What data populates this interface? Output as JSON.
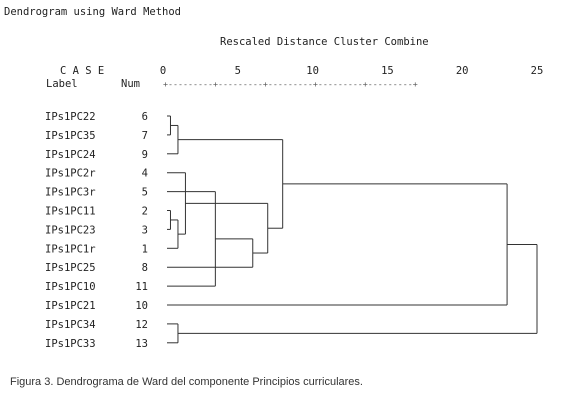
{
  "chart_data": {
    "type": "dendrogram",
    "title": "Dendrogram using Ward Method",
    "scale_title": "Rescaled Distance Cluster Combine",
    "case_header": "C A S E",
    "label_header": "Label",
    "num_header": "Num",
    "axis_ticks": [
      0,
      5,
      10,
      15,
      20,
      25
    ],
    "axis_rule": "+---------+---------+---------+---------+---------+",
    "xlim": [
      0,
      25
    ],
    "leaves": [
      {
        "label": "IPs1PC22",
        "num": "6"
      },
      {
        "label": "IPs1PC35",
        "num": "7"
      },
      {
        "label": "IPs1PC24",
        "num": "9"
      },
      {
        "label": "IPs1PC2r",
        "num": "4"
      },
      {
        "label": "IPs1PC3r",
        "num": "5"
      },
      {
        "label": "IPs1PC11",
        "num": "2"
      },
      {
        "label": "IPs1PC23",
        "num": "3"
      },
      {
        "label": "IPs1PC1r",
        "num": "1"
      },
      {
        "label": "IPs1PC25",
        "num": "8"
      },
      {
        "label": "IPs1PC10",
        "num": "11"
      },
      {
        "label": "IPs1PC21",
        "num": "10"
      },
      {
        "label": "IPs1PC34",
        "num": "12"
      },
      {
        "label": "IPs1PC33",
        "num": "13"
      }
    ],
    "merges": [
      {
        "a": "leaf:0",
        "b": "leaf:1",
        "distance": 0.5
      },
      {
        "a": "leaf:5",
        "b": "leaf:6",
        "distance": 0.5
      },
      {
        "a": "leaf:7",
        "b": "merge:1",
        "distance": 1.0
      },
      {
        "a": "merge:0",
        "b": "leaf:2",
        "distance": 1.0
      },
      {
        "a": "leaf:3",
        "b": "merge:2",
        "distance": 1.5
      },
      {
        "a": "leaf:4",
        "b": "leaf:9",
        "distance": 3.5
      },
      {
        "a": "merge:5",
        "b": "leaf:8",
        "distance": 6.0
      },
      {
        "a": "merge:4",
        "b": "merge:6",
        "distance": 7.0
      },
      {
        "a": "merge:3",
        "b": "merge:7",
        "distance": 8.0
      },
      {
        "a": "leaf:11",
        "b": "leaf:12",
        "distance": 1.0
      },
      {
        "a": "merge:8",
        "b": "leaf:10",
        "distance": 23.0
      },
      {
        "a": "merge:10",
        "b": "merge:9",
        "distance": 25.0
      }
    ]
  },
  "caption": "Figura 3. Dendrograma de Ward del componente Principios curriculares."
}
